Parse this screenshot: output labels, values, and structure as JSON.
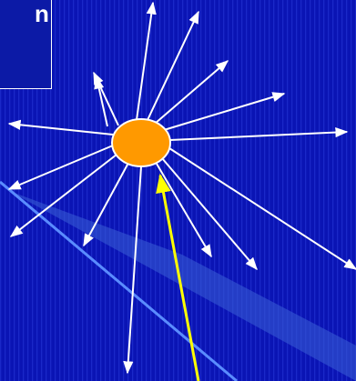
{
  "label_box": {
    "text": "n"
  },
  "colors": {
    "background": "#0a14b4",
    "stripe": "#1a28c8",
    "wedge": "#3b5fd6",
    "wedge_edge": "#5a8cff",
    "particle": "#ff9900",
    "incoming_ray": "#ffff00",
    "scattered_rays": "#ffffff"
  },
  "icons": {
    "particle": "orange-ellipse",
    "incoming_ray": "yellow-arrow",
    "scattered_rays": "white-arrows"
  }
}
